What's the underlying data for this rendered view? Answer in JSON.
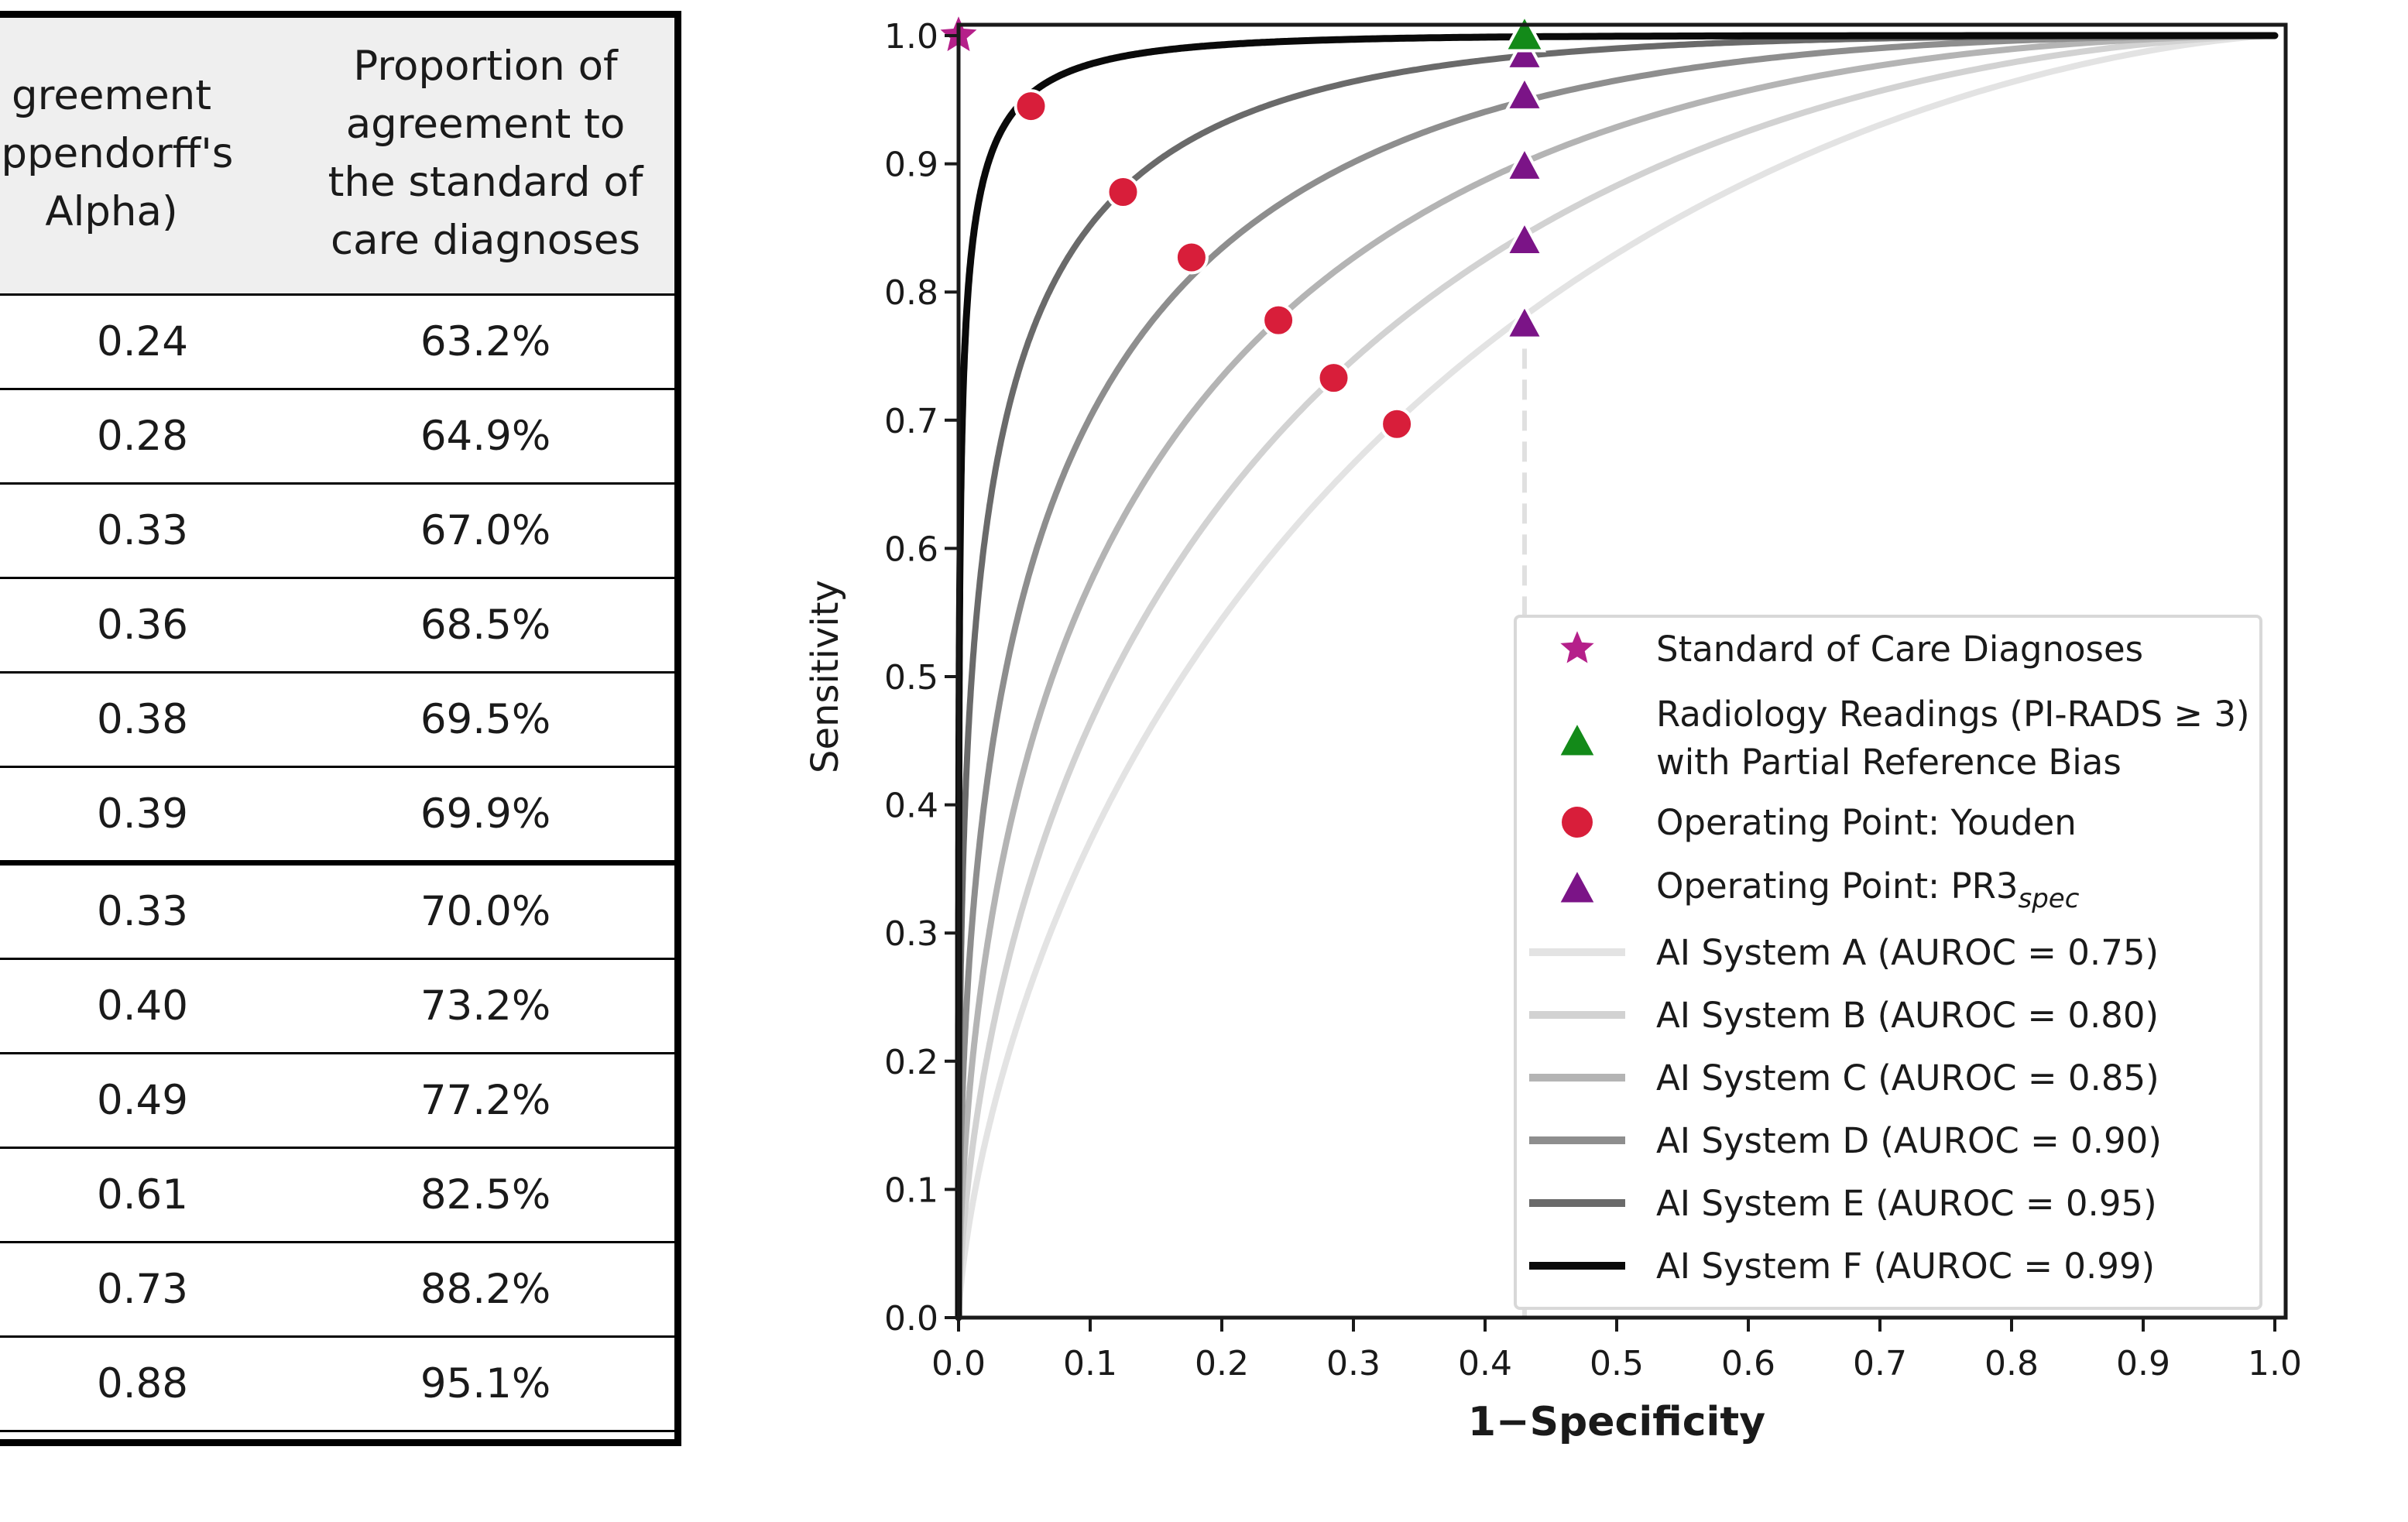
{
  "table": {
    "headers": [
      "greement\nippendorff's\nAlpha)",
      "Proportion of\nagreement to\nthe standard of\ncare diagnoses"
    ],
    "rows": [
      [
        "0.24",
        "63.2%"
      ],
      [
        "0.28",
        "64.9%"
      ],
      [
        "0.33",
        "67.0%"
      ],
      [
        "0.36",
        "68.5%"
      ],
      [
        "0.38",
        "69.5%"
      ],
      [
        "0.39",
        "69.9%"
      ],
      [
        "0.33",
        "70.0%"
      ],
      [
        "0.40",
        "73.2%"
      ],
      [
        "0.49",
        "77.2%"
      ],
      [
        "0.61",
        "82.5%"
      ],
      [
        "0.73",
        "88.2%"
      ],
      [
        "0.88",
        "95.1%"
      ]
    ]
  },
  "chart_data": {
    "type": "line",
    "xlabel": "1−Specificity",
    "ylabel": "Sensitivity",
    "xlim": [
      0.0,
      1.0
    ],
    "ylim": [
      0.0,
      1.0
    ],
    "xticks": [
      "0.0",
      "0.1",
      "0.2",
      "0.3",
      "0.4",
      "0.5",
      "0.6",
      "0.7",
      "0.8",
      "0.9",
      "1.0"
    ],
    "yticks": [
      "0.0",
      "0.1",
      "0.2",
      "0.3",
      "0.4",
      "0.5",
      "0.6",
      "0.7",
      "0.8",
      "0.9",
      "1.0"
    ],
    "grid": false,
    "legend_position": "bottom-right",
    "reference_line_x": 0.43,
    "series": [
      {
        "name": "AI System A (AUROC = 0.75)",
        "auroc": 0.75,
        "color": "#e3e3e3"
      },
      {
        "name": "AI System B (AUROC = 0.80)",
        "auroc": 0.8,
        "color": "#d2d2d2"
      },
      {
        "name": "AI System C (AUROC = 0.85)",
        "auroc": 0.85,
        "color": "#b4b4b4"
      },
      {
        "name": "AI System D (AUROC = 0.90)",
        "auroc": 0.9,
        "color": "#8e8e8e"
      },
      {
        "name": "AI System E (AUROC = 0.95)",
        "auroc": 0.95,
        "color": "#6a6a6a"
      },
      {
        "name": "AI System F (AUROC = 0.99)",
        "auroc": 0.99,
        "color": "#0a0a0a"
      }
    ],
    "standard_of_care": {
      "name": "Standard of Care Diagnoses",
      "x": 0.0,
      "y": 1.0,
      "color": "#b5208a"
    },
    "radiology": {
      "name": "Radiology Readings (PI-RADS ≥ 3)\nwith Partial Reference Bias",
      "x": 0.43,
      "y": 1.0,
      "color": "#138a19"
    },
    "youden": {
      "name": "Operating Point: Youden",
      "color": "#d81e3a",
      "points": [
        {
          "x": 0.055,
          "y": 0.945
        },
        {
          "x": 0.125,
          "y": 0.878
        },
        {
          "x": 0.177,
          "y": 0.827
        },
        {
          "x": 0.243,
          "y": 0.778
        },
        {
          "x": 0.285,
          "y": 0.733
        },
        {
          "x": 0.333,
          "y": 0.697
        }
      ]
    },
    "pr3": {
      "name": "Operating Point: PR3",
      "subscript": "spec",
      "color": "#7b1487",
      "points": [
        {
          "x": 0.43,
          "y": 0.775
        },
        {
          "x": 0.43,
          "y": 0.84
        },
        {
          "x": 0.43,
          "y": 0.898
        },
        {
          "x": 0.43,
          "y": 0.953
        },
        {
          "x": 0.43,
          "y": 0.985
        }
      ]
    }
  }
}
